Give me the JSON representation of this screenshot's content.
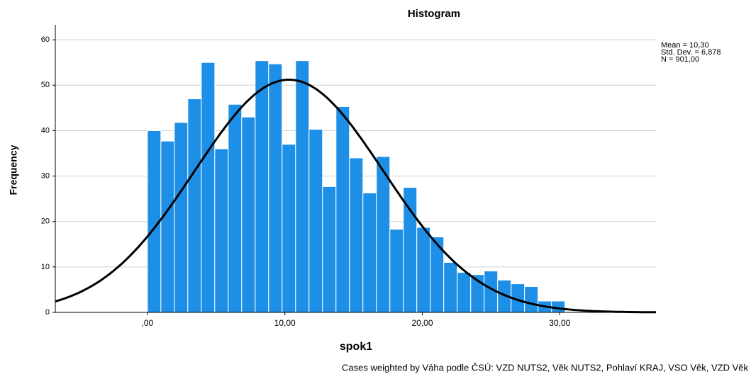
{
  "chart_data": {
    "type": "histogram",
    "title": "Histogram",
    "x_label": "spok1",
    "y_label": "Frequency",
    "footnote": "Cases weighted by Váha podle ČSÚ: VZD  NUTS2, Věk  NUTS2, Pohlaví  KRAJ, VSO  Věk, VZD  Věk",
    "stats_text": [
      "Mean = 10,30",
      "Std. Dev. = 6,878",
      "N = 901,00"
    ],
    "curve": {
      "mean": 10.3,
      "sd": 6.878,
      "n": 901
    },
    "bins": [
      0,
      0.98,
      1.96,
      2.94,
      3.92,
      4.9,
      5.88,
      6.86,
      7.84,
      8.82,
      9.8,
      10.78,
      11.76,
      12.74,
      13.72,
      14.7,
      15.68,
      16.66,
      17.64,
      18.62,
      19.6,
      20.58,
      21.56,
      22.54,
      23.52,
      24.5,
      25.48,
      26.46,
      27.44,
      28.42,
      29.4,
      30.38
    ],
    "values": [
      40,
      37.7,
      41.8,
      47,
      55,
      36,
      45.8,
      43,
      55.4,
      54.7,
      37,
      55.4,
      40.3,
      27.7,
      45.3,
      34,
      26.3,
      34.3,
      18.3,
      27.5,
      18.7,
      16.6,
      11,
      8.8,
      8.3,
      9.1,
      7.1,
      6.3,
      5.7,
      2.5,
      2.5
    ],
    "color": "#1e8fe6",
    "curve_color": "#000000",
    "xlim": [
      -6.7,
      37
    ],
    "ylim": [
      0,
      63.3
    ],
    "xticks": [
      {
        "value": 0,
        "label": ",00"
      },
      {
        "value": 10,
        "label": "10,00"
      },
      {
        "value": 20,
        "label": "20,00"
      },
      {
        "value": 30,
        "label": "30,00"
      }
    ],
    "yticks": [
      0,
      10,
      20,
      30,
      40,
      50,
      60
    ],
    "grid": true
  }
}
